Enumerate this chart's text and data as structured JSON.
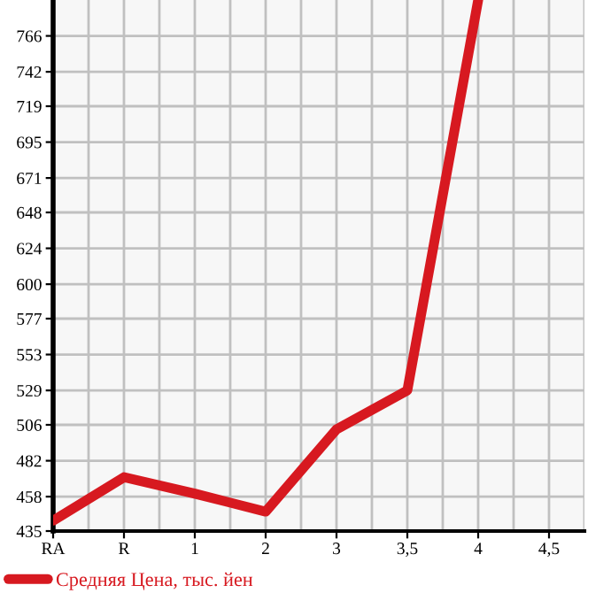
{
  "chart_data": {
    "type": "line",
    "categories": [
      "RA",
      "R",
      "1",
      "2",
      "3",
      "3,5",
      "4",
      "4,5"
    ],
    "series": [
      {
        "name": "Средняя Цена, тыс. йен",
        "color": "#d71920",
        "values": [
          442,
          471,
          460,
          448,
          503,
          529,
          790,
          null
        ]
      }
    ],
    "ylim": [
      435,
      790
    ],
    "yticks": [
      435,
      458,
      482,
      506,
      529,
      553,
      577,
      600,
      624,
      648,
      671,
      695,
      719,
      742,
      766
    ],
    "grid": true,
    "legend": "bottom",
    "marker": "none",
    "line_style": "solid"
  }
}
